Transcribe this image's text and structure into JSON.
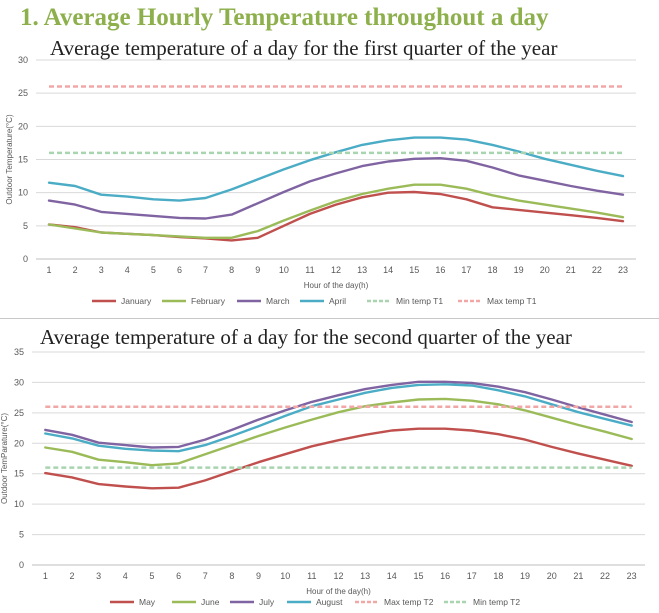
{
  "heading": "1. Average Hourly Temperature throughout a day",
  "chart_data": [
    {
      "type": "line",
      "title": "Average temperature of a day for the first quarter of the year",
      "xlabel": "Hour of the day(h)",
      "ylabel": "Outdoor Temperature(°C)",
      "x": [
        1,
        2,
        3,
        4,
        5,
        6,
        7,
        8,
        9,
        10,
        11,
        12,
        13,
        14,
        15,
        16,
        17,
        18,
        19,
        20,
        21,
        22,
        23
      ],
      "ylim": [
        0,
        30
      ],
      "yticks": [
        0,
        5,
        10,
        15,
        20,
        25,
        30
      ],
      "grid": true,
      "legend_position": "bottom",
      "series": [
        {
          "name": "January",
          "color": "#c0504d",
          "dashed": false,
          "values": [
            5.2,
            4.8,
            4.0,
            3.8,
            3.6,
            3.3,
            3.1,
            2.8,
            3.2,
            5.0,
            6.8,
            8.2,
            9.3,
            10.0,
            10.1,
            9.8,
            9.0,
            7.8,
            7.4,
            7.0,
            6.6,
            6.2,
            5.7
          ]
        },
        {
          "name": "February",
          "color": "#9bbb59",
          "dashed": false,
          "values": [
            5.2,
            4.6,
            4.0,
            3.8,
            3.6,
            3.4,
            3.2,
            3.2,
            4.2,
            5.8,
            7.3,
            8.7,
            9.8,
            10.6,
            11.2,
            11.2,
            10.6,
            9.6,
            8.8,
            8.2,
            7.6,
            7.0,
            6.3
          ]
        },
        {
          "name": "March",
          "color": "#8064a2",
          "dashed": false,
          "values": [
            8.8,
            8.2,
            7.1,
            6.8,
            6.5,
            6.2,
            6.1,
            6.7,
            8.4,
            10.1,
            11.7,
            12.9,
            14.0,
            14.7,
            15.1,
            15.2,
            14.8,
            13.8,
            12.6,
            11.8,
            11.0,
            10.3,
            9.7
          ]
        },
        {
          "name": "April",
          "color": "#4bacc6",
          "dashed": false,
          "values": [
            11.5,
            11.0,
            9.7,
            9.4,
            9.0,
            8.8,
            9.2,
            10.5,
            12.0,
            13.5,
            14.9,
            16.1,
            17.2,
            17.9,
            18.3,
            18.3,
            18.0,
            17.2,
            16.2,
            15.1,
            14.2,
            13.3,
            12.5
          ]
        },
        {
          "name": "Min temp T1",
          "color": "#a9d4b0",
          "dashed": true,
          "values": [
            16,
            16,
            16,
            16,
            16,
            16,
            16,
            16,
            16,
            16,
            16,
            16,
            16,
            16,
            16,
            16,
            16,
            16,
            16,
            16,
            16,
            16,
            16
          ]
        },
        {
          "name": "Max temp T1",
          "color": "#f2a7a7",
          "dashed": true,
          "values": [
            26,
            26,
            26,
            26,
            26,
            26,
            26,
            26,
            26,
            26,
            26,
            26,
            26,
            26,
            26,
            26,
            26,
            26,
            26,
            26,
            26,
            26,
            26
          ]
        }
      ]
    },
    {
      "type": "line",
      "title": "Average temperature of a day for the second quarter of the year",
      "xlabel": "Hour of the day(h)",
      "ylabel": "Outdoor TemParature(°C)",
      "x": [
        1,
        2,
        3,
        4,
        5,
        6,
        7,
        8,
        9,
        10,
        11,
        12,
        13,
        14,
        15,
        16,
        17,
        18,
        19,
        20,
        21,
        22,
        23
      ],
      "ylim": [
        0,
        35
      ],
      "yticks": [
        0,
        5,
        10,
        15,
        20,
        25,
        30,
        35
      ],
      "grid": true,
      "legend_position": "bottom",
      "series": [
        {
          "name": "May",
          "color": "#c0504d",
          "dashed": false,
          "values": [
            15.1,
            14.4,
            13.3,
            12.9,
            12.6,
            12.7,
            13.9,
            15.4,
            16.9,
            18.2,
            19.5,
            20.5,
            21.4,
            22.1,
            22.4,
            22.4,
            22.1,
            21.5,
            20.6,
            19.4,
            18.3,
            17.3,
            16.3
          ]
        },
        {
          "name": "June",
          "color": "#9bbb59",
          "dashed": false,
          "values": [
            19.3,
            18.6,
            17.3,
            16.9,
            16.4,
            16.7,
            18.2,
            19.7,
            21.2,
            22.6,
            23.9,
            25.1,
            26.1,
            26.7,
            27.2,
            27.3,
            27.0,
            26.4,
            25.4,
            24.2,
            23.0,
            21.9,
            20.7
          ]
        },
        {
          "name": "July",
          "color": "#8064a2",
          "dashed": false,
          "values": [
            22.2,
            21.4,
            20.1,
            19.7,
            19.3,
            19.4,
            20.6,
            22.2,
            23.9,
            25.4,
            26.8,
            27.9,
            28.9,
            29.6,
            30.1,
            30.1,
            29.9,
            29.3,
            28.4,
            27.2,
            25.9,
            24.7,
            23.5
          ]
        },
        {
          "name": "August",
          "color": "#4bacc6",
          "dashed": false,
          "values": [
            21.6,
            20.8,
            19.6,
            19.1,
            18.8,
            18.7,
            19.7,
            21.2,
            22.8,
            24.5,
            26.1,
            27.2,
            28.3,
            29.1,
            29.6,
            29.7,
            29.5,
            28.7,
            27.7,
            26.4,
            25.1,
            24.0,
            22.9
          ]
        },
        {
          "name": "Max temp T2",
          "color": "#f2a7a7",
          "dashed": true,
          "values": [
            26,
            26,
            26,
            26,
            26,
            26,
            26,
            26,
            26,
            26,
            26,
            26,
            26,
            26,
            26,
            26,
            26,
            26,
            26,
            26,
            26,
            26,
            26
          ]
        },
        {
          "name": "Min temp T2",
          "color": "#a9d4b0",
          "dashed": true,
          "values": [
            16,
            16,
            16,
            16,
            16,
            16,
            16,
            16,
            16,
            16,
            16,
            16,
            16,
            16,
            16,
            16,
            16,
            16,
            16,
            16,
            16,
            16,
            16
          ]
        }
      ]
    }
  ]
}
